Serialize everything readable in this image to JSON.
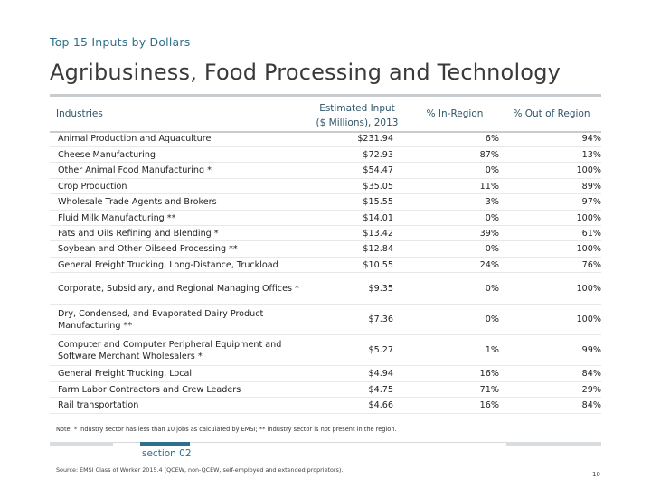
{
  "header": {
    "kicker": "Top 15 Inputs by Dollars",
    "title": "Agribusiness, Food Processing and Technology"
  },
  "table": {
    "columns": {
      "industries": "Industries",
      "estimated_line1": "Estimated Input",
      "estimated_line2": "($ Millions), 2013",
      "in_region": "% In-Region",
      "out_region": "% Out of Region"
    },
    "rows": [
      {
        "name": "Animal Production and Aquaculture",
        "estimated": "$231.94",
        "in_region": "6%",
        "out_region": "94%"
      },
      {
        "name": "Cheese Manufacturing",
        "estimated": "$72.93",
        "in_region": "87%",
        "out_region": "13%"
      },
      {
        "name": "Other Animal Food Manufacturing *",
        "estimated": "$54.47",
        "in_region": "0%",
        "out_region": "100%"
      },
      {
        "name": "Crop Production",
        "estimated": "$35.05",
        "in_region": "11%",
        "out_region": "89%"
      },
      {
        "name": "Wholesale Trade Agents and Brokers",
        "estimated": "$15.55",
        "in_region": "3%",
        "out_region": "97%"
      },
      {
        "name": "Fluid Milk Manufacturing **",
        "estimated": "$14.01",
        "in_region": "0%",
        "out_region": "100%"
      },
      {
        "name": "Fats and Oils Refining and Blending *",
        "estimated": "$13.42",
        "in_region": "39%",
        "out_region": "61%"
      },
      {
        "name": "Soybean and Other Oilseed Processing **",
        "estimated": "$12.84",
        "in_region": "0%",
        "out_region": "100%"
      },
      {
        "name": "General Freight Trucking, Long-Distance, Truckload",
        "estimated": "$10.55",
        "in_region": "24%",
        "out_region": "76%"
      },
      {
        "name": "Corporate, Subsidiary, and Regional Managing Offices *",
        "estimated": "$9.35",
        "in_region": "0%",
        "out_region": "100%"
      },
      {
        "name": "Dry, Condensed, and Evaporated Dairy Product Manufacturing **",
        "estimated": "$7.36",
        "in_region": "0%",
        "out_region": "100%"
      },
      {
        "name": "Computer and Computer Peripheral Equipment and Software Merchant Wholesalers *",
        "estimated": "$5.27",
        "in_region": "1%",
        "out_region": "99%"
      },
      {
        "name": "General Freight Trucking, Local",
        "estimated": "$4.94",
        "in_region": "16%",
        "out_region": "84%"
      },
      {
        "name": "Farm Labor Contractors and Crew Leaders",
        "estimated": "$4.75",
        "in_region": "71%",
        "out_region": "29%"
      },
      {
        "name": "Rail transportation",
        "estimated": "$4.66",
        "in_region": "16%",
        "out_region": "84%"
      }
    ]
  },
  "note": "Note: * industry sector has less than 10 jobs as calculated by EMSI; ** industry sector is not present in the region.",
  "section_label": "section 02",
  "source": "Source: EMSI Class of Worker 2015.4 (QCEW, non-QCEW, self-employed and extended proprietors).",
  "page_number": "10",
  "colors": {
    "accent": "#2e6f8e",
    "title_text": "#3a3a3a",
    "rule": "#c7ccd0"
  }
}
